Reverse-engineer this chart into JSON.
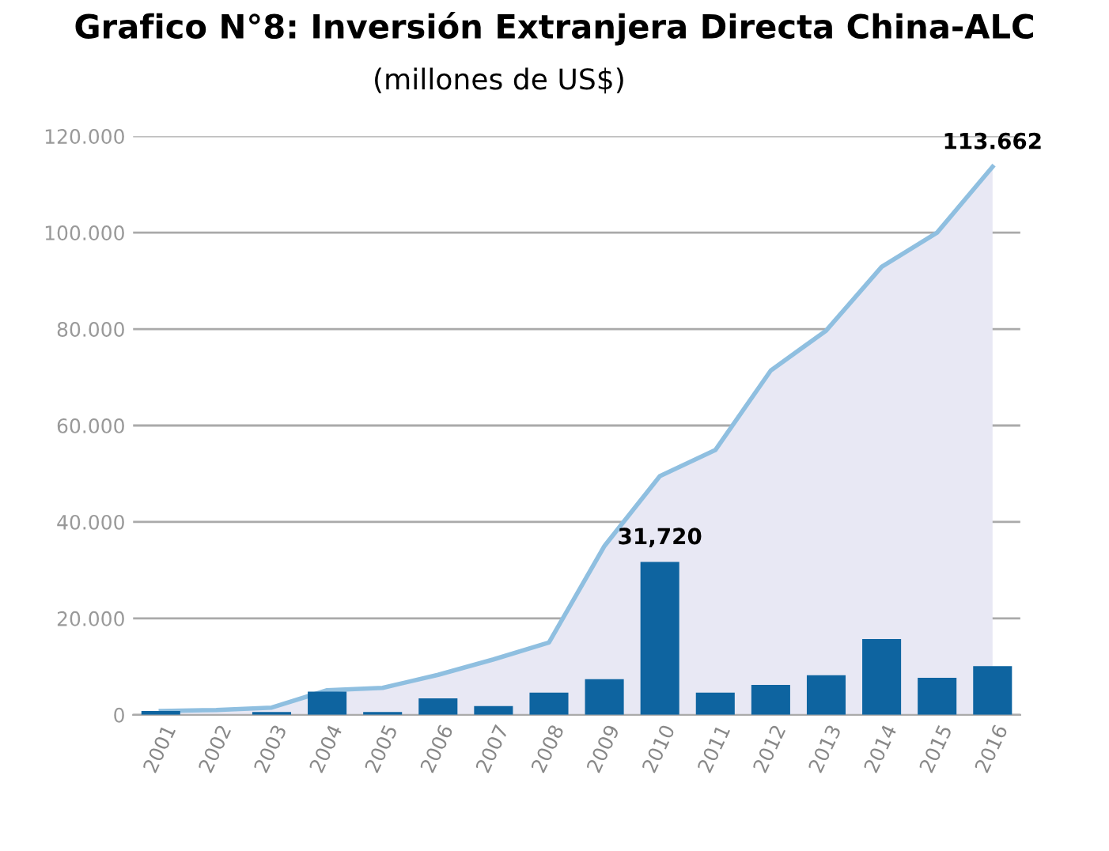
{
  "chart_data": {
    "type": "bar",
    "title": "Grafico N°8: Inversión Extranjera Directa China-ALC",
    "subtitle": "(millones de US$)",
    "categories": [
      "2001",
      "2002",
      "2003",
      "2004",
      "2005",
      "2006",
      "2007",
      "2008",
      "2009",
      "2010",
      "2011",
      "2012",
      "2013",
      "2014",
      "2015",
      "2016"
    ],
    "series": [
      {
        "type": "area",
        "color": "#8fbfe0",
        "values": [
          800,
          1000,
          1500,
          5100,
          5600,
          8300,
          11500,
          15000,
          35000,
          49500,
          54900,
          71400,
          79700,
          92900,
          100000,
          113662
        ]
      },
      {
        "color": "#0e64a0",
        "values": [
          800,
          0,
          600,
          4800,
          600,
          3400,
          1800,
          4600,
          7400,
          31720,
          4600,
          6200,
          8200,
          15700,
          7700,
          10100
        ]
      }
    ],
    "annotations": [
      {
        "text": "31,720",
        "x": "2010",
        "y": 31720
      },
      {
        "text": "113.662",
        "x": "2016",
        "y": 113662
      }
    ],
    "ylim": [
      0,
      120000
    ],
    "yticks": [
      {
        "value": 0,
        "label": "0"
      },
      {
        "value": 20000,
        "label": "20.000"
      },
      {
        "value": 40000,
        "label": "40.000"
      },
      {
        "value": 60000,
        "label": "60.000"
      },
      {
        "value": 80000,
        "label": "80.000"
      },
      {
        "value": 100000,
        "label": "100.000"
      },
      {
        "value": 120000,
        "label": "120.000"
      }
    ],
    "grid": "y"
  }
}
